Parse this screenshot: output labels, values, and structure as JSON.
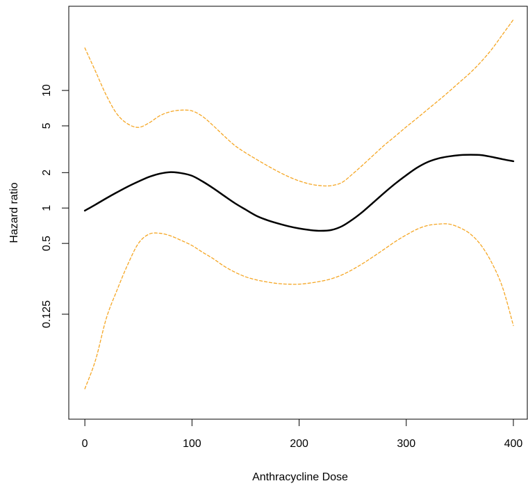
{
  "chart_data": {
    "type": "line",
    "title": "",
    "xlabel": "Anthracycline Dose",
    "ylabel": "Hazard ratio",
    "x_ticks": [
      0,
      100,
      200,
      300,
      400
    ],
    "y_ticks": [
      0.125,
      0.5,
      1,
      2,
      5,
      10
    ],
    "y_tick_labels": [
      "0.125",
      "0.5",
      "1",
      "2",
      "5",
      "10"
    ],
    "xlim": [
      -15,
      413
    ],
    "ylim": [
      0.016,
      52
    ],
    "y_scale": "log",
    "grid": false,
    "legend": "none",
    "colors": {
      "estimate": "#000000",
      "ci": "#f5a623",
      "frame": "#000000"
    },
    "series": [
      {
        "role": "estimate",
        "style": "solid",
        "x": [
          0,
          10,
          20,
          30,
          40,
          50,
          60,
          70,
          80,
          90,
          100,
          110,
          120,
          130,
          140,
          150,
          160,
          170,
          180,
          190,
          200,
          210,
          220,
          230,
          240,
          250,
          260,
          270,
          280,
          290,
          300,
          310,
          320,
          330,
          340,
          350,
          360,
          370,
          380,
          390,
          400
        ],
        "y": [
          0.95,
          1.07,
          1.21,
          1.36,
          1.52,
          1.68,
          1.84,
          1.96,
          2.02,
          1.98,
          1.88,
          1.68,
          1.47,
          1.27,
          1.1,
          0.97,
          0.86,
          0.79,
          0.74,
          0.7,
          0.67,
          0.65,
          0.64,
          0.65,
          0.7,
          0.8,
          0.94,
          1.13,
          1.36,
          1.62,
          1.9,
          2.2,
          2.46,
          2.64,
          2.75,
          2.82,
          2.84,
          2.82,
          2.72,
          2.6,
          2.5
        ]
      },
      {
        "role": "ci-upper",
        "style": "dashed",
        "x": [
          0,
          10,
          20,
          30,
          40,
          50,
          60,
          70,
          80,
          90,
          100,
          110,
          120,
          130,
          140,
          150,
          160,
          170,
          180,
          190,
          200,
          210,
          220,
          230,
          240,
          250,
          260,
          270,
          280,
          290,
          300,
          310,
          320,
          330,
          340,
          350,
          360,
          370,
          380,
          390,
          400
        ],
        "y": [
          23,
          14.5,
          9.1,
          6.3,
          5.2,
          4.85,
          5.3,
          6.1,
          6.6,
          6.8,
          6.7,
          6.0,
          5.0,
          4.1,
          3.4,
          2.95,
          2.6,
          2.3,
          2.05,
          1.85,
          1.7,
          1.6,
          1.55,
          1.55,
          1.65,
          1.95,
          2.35,
          2.85,
          3.45,
          4.1,
          4.9,
          5.8,
          6.9,
          8.2,
          9.8,
          11.8,
          14.2,
          17.6,
          22.5,
          30,
          40
        ]
      },
      {
        "role": "ci-lower",
        "style": "dashed",
        "x": [
          0,
          10,
          20,
          30,
          40,
          50,
          60,
          70,
          80,
          90,
          100,
          110,
          120,
          130,
          140,
          150,
          160,
          170,
          180,
          190,
          200,
          210,
          220,
          230,
          240,
          250,
          260,
          270,
          280,
          290,
          300,
          310,
          320,
          330,
          340,
          350,
          360,
          370,
          380,
          390,
          400
        ],
        "y": [
          0.029,
          0.051,
          0.115,
          0.2,
          0.33,
          0.5,
          0.6,
          0.61,
          0.58,
          0.53,
          0.48,
          0.42,
          0.37,
          0.32,
          0.285,
          0.26,
          0.245,
          0.235,
          0.228,
          0.225,
          0.225,
          0.23,
          0.238,
          0.25,
          0.27,
          0.3,
          0.34,
          0.39,
          0.45,
          0.52,
          0.59,
          0.66,
          0.71,
          0.73,
          0.73,
          0.68,
          0.6,
          0.48,
          0.34,
          0.21,
          0.1
        ]
      }
    ]
  }
}
